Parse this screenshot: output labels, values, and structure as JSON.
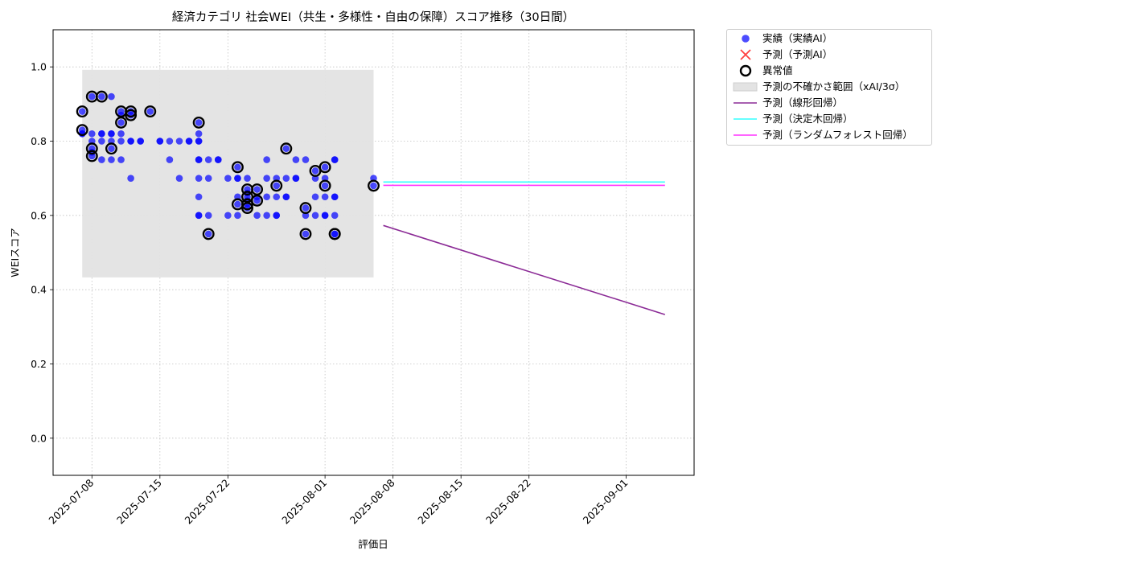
{
  "chart_data": {
    "type": "scatter",
    "title": "経済カテゴリ 社会WEI（共生・多様性・自由の保障）スコア推移（30日間）",
    "xlabel": "評価日",
    "ylabel": "WEIスコア",
    "x_type": "date",
    "xlim": [
      "2025-07-04",
      "2025-09-08"
    ],
    "ylim": [
      -0.1,
      1.1
    ],
    "grid": true,
    "x_ticks": [
      "2025-07-08",
      "2025-07-15",
      "2025-07-22",
      "2025-08-01",
      "2025-08-08",
      "2025-08-15",
      "2025-08-22",
      "2025-09-01"
    ],
    "y_ticks": [
      0.0,
      0.2,
      0.4,
      0.6,
      0.8,
      1.0
    ],
    "y_tick_labels": [
      "0.0",
      "0.2",
      "0.4",
      "0.6",
      "0.8",
      "1.0"
    ],
    "legend_position": "outside-right",
    "series": [
      {
        "name": "実績（実績AI）",
        "kind": "scatter",
        "color": "#0000ff",
        "points": [
          {
            "x": "2025-07-07",
            "y": 0.88
          },
          {
            "x": "2025-07-07",
            "y": 0.83
          },
          {
            "x": "2025-07-07",
            "y": 0.82
          },
          {
            "x": "2025-07-07",
            "y": 0.82
          },
          {
            "x": "2025-07-08",
            "y": 0.82
          },
          {
            "x": "2025-07-08",
            "y": 0.78
          },
          {
            "x": "2025-07-08",
            "y": 0.8
          },
          {
            "x": "2025-07-08",
            "y": 0.76
          },
          {
            "x": "2025-07-08",
            "y": 0.77
          },
          {
            "x": "2025-07-08",
            "y": 0.92
          },
          {
            "x": "2025-07-09",
            "y": 0.92
          },
          {
            "x": "2025-07-09",
            "y": 0.8
          },
          {
            "x": "2025-07-09",
            "y": 0.82
          },
          {
            "x": "2025-07-09",
            "y": 0.75
          },
          {
            "x": "2025-07-09",
            "y": 0.82
          },
          {
            "x": "2025-07-10",
            "y": 0.82
          },
          {
            "x": "2025-07-10",
            "y": 0.92
          },
          {
            "x": "2025-07-10",
            "y": 0.78
          },
          {
            "x": "2025-07-10",
            "y": 0.82
          },
          {
            "x": "2025-07-10",
            "y": 0.8
          },
          {
            "x": "2025-07-10",
            "y": 0.75
          },
          {
            "x": "2025-07-11",
            "y": 0.8
          },
          {
            "x": "2025-07-11",
            "y": 0.82
          },
          {
            "x": "2025-07-11",
            "y": 0.75
          },
          {
            "x": "2025-07-11",
            "y": 0.88
          },
          {
            "x": "2025-07-11",
            "y": 0.85
          },
          {
            "x": "2025-07-11",
            "y": 0.87
          },
          {
            "x": "2025-07-12",
            "y": 0.88
          },
          {
            "x": "2025-07-12",
            "y": 0.87
          },
          {
            "x": "2025-07-12",
            "y": 0.8
          },
          {
            "x": "2025-07-12",
            "y": 0.7
          },
          {
            "x": "2025-07-12",
            "y": 0.8
          },
          {
            "x": "2025-07-13",
            "y": 0.8
          },
          {
            "x": "2025-07-13",
            "y": 0.8
          },
          {
            "x": "2025-07-14",
            "y": 0.88
          },
          {
            "x": "2025-07-15",
            "y": 0.8
          },
          {
            "x": "2025-07-15",
            "y": 0.8
          },
          {
            "x": "2025-07-16",
            "y": 0.75
          },
          {
            "x": "2025-07-16",
            "y": 0.8
          },
          {
            "x": "2025-07-17",
            "y": 0.7
          },
          {
            "x": "2025-07-17",
            "y": 0.8
          },
          {
            "x": "2025-07-18",
            "y": 0.8
          },
          {
            "x": "2025-07-18",
            "y": 0.8
          },
          {
            "x": "2025-07-19",
            "y": 0.85
          },
          {
            "x": "2025-07-19",
            "y": 0.82
          },
          {
            "x": "2025-07-19",
            "y": 0.8
          },
          {
            "x": "2025-07-19",
            "y": 0.75
          },
          {
            "x": "2025-07-19",
            "y": 0.7
          },
          {
            "x": "2025-07-19",
            "y": 0.65
          },
          {
            "x": "2025-07-19",
            "y": 0.6
          },
          {
            "x": "2025-07-19",
            "y": 0.6
          },
          {
            "x": "2025-07-19",
            "y": 0.8
          },
          {
            "x": "2025-07-19",
            "y": 0.75
          },
          {
            "x": "2025-07-20",
            "y": 0.75
          },
          {
            "x": "2025-07-20",
            "y": 0.7
          },
          {
            "x": "2025-07-20",
            "y": 0.55
          },
          {
            "x": "2025-07-20",
            "y": 0.6
          },
          {
            "x": "2025-07-21",
            "y": 0.75
          },
          {
            "x": "2025-07-21",
            "y": 0.75
          },
          {
            "x": "2025-07-22",
            "y": 0.7
          },
          {
            "x": "2025-07-22",
            "y": 0.6
          },
          {
            "x": "2025-07-23",
            "y": 0.73
          },
          {
            "x": "2025-07-23",
            "y": 0.7
          },
          {
            "x": "2025-07-23",
            "y": 0.7
          },
          {
            "x": "2025-07-23",
            "y": 0.65
          },
          {
            "x": "2025-07-23",
            "y": 0.63
          },
          {
            "x": "2025-07-23",
            "y": 0.6
          },
          {
            "x": "2025-07-24",
            "y": 0.7
          },
          {
            "x": "2025-07-24",
            "y": 0.67
          },
          {
            "x": "2025-07-24",
            "y": 0.66
          },
          {
            "x": "2025-07-24",
            "y": 0.65
          },
          {
            "x": "2025-07-24",
            "y": 0.64
          },
          {
            "x": "2025-07-24",
            "y": 0.63
          },
          {
            "x": "2025-07-24",
            "y": 0.62
          },
          {
            "x": "2025-07-25",
            "y": 0.67
          },
          {
            "x": "2025-07-25",
            "y": 0.65
          },
          {
            "x": "2025-07-25",
            "y": 0.64
          },
          {
            "x": "2025-07-25",
            "y": 0.6
          },
          {
            "x": "2025-07-26",
            "y": 0.7
          },
          {
            "x": "2025-07-26",
            "y": 0.75
          },
          {
            "x": "2025-07-26",
            "y": 0.65
          },
          {
            "x": "2025-07-26",
            "y": 0.6
          },
          {
            "x": "2025-07-27",
            "y": 0.7
          },
          {
            "x": "2025-07-27",
            "y": 0.68
          },
          {
            "x": "2025-07-27",
            "y": 0.65
          },
          {
            "x": "2025-07-27",
            "y": 0.6
          },
          {
            "x": "2025-07-27",
            "y": 0.6
          },
          {
            "x": "2025-07-28",
            "y": 0.78
          },
          {
            "x": "2025-07-28",
            "y": 0.7
          },
          {
            "x": "2025-07-28",
            "y": 0.65
          },
          {
            "x": "2025-07-28",
            "y": 0.65
          },
          {
            "x": "2025-07-29",
            "y": 0.75
          },
          {
            "x": "2025-07-29",
            "y": 0.7
          },
          {
            "x": "2025-07-29",
            "y": 0.7
          },
          {
            "x": "2025-07-30",
            "y": 0.75
          },
          {
            "x": "2025-07-30",
            "y": 0.62
          },
          {
            "x": "2025-07-30",
            "y": 0.6
          },
          {
            "x": "2025-07-30",
            "y": 0.55
          },
          {
            "x": "2025-07-31",
            "y": 0.72
          },
          {
            "x": "2025-07-31",
            "y": 0.7
          },
          {
            "x": "2025-07-31",
            "y": 0.65
          },
          {
            "x": "2025-07-31",
            "y": 0.6
          },
          {
            "x": "2025-08-01",
            "y": 0.73
          },
          {
            "x": "2025-08-01",
            "y": 0.7
          },
          {
            "x": "2025-08-01",
            "y": 0.68
          },
          {
            "x": "2025-08-01",
            "y": 0.65
          },
          {
            "x": "2025-08-01",
            "y": 0.6
          },
          {
            "x": "2025-08-01",
            "y": 0.6
          },
          {
            "x": "2025-08-02",
            "y": 0.75
          },
          {
            "x": "2025-08-02",
            "y": 0.75
          },
          {
            "x": "2025-08-02",
            "y": 0.65
          },
          {
            "x": "2025-08-02",
            "y": 0.65
          },
          {
            "x": "2025-08-02",
            "y": 0.6
          },
          {
            "x": "2025-08-02",
            "y": 0.55
          },
          {
            "x": "2025-08-02",
            "y": 0.55
          },
          {
            "x": "2025-08-06",
            "y": 0.7
          },
          {
            "x": "2025-08-06",
            "y": 0.68
          }
        ]
      },
      {
        "name": "予測（予測AI）",
        "kind": "scatter",
        "marker": "x",
        "color": "#ff0000",
        "points": []
      },
      {
        "name": "異常値",
        "kind": "scatter",
        "marker": "ring",
        "color": "#000000",
        "points": [
          {
            "x": "2025-07-07",
            "y": 0.88
          },
          {
            "x": "2025-07-07",
            "y": 0.83
          },
          {
            "x": "2025-07-08",
            "y": 0.78
          },
          {
            "x": "2025-07-08",
            "y": 0.76
          },
          {
            "x": "2025-07-08",
            "y": 0.92
          },
          {
            "x": "2025-07-09",
            "y": 0.92
          },
          {
            "x": "2025-07-10",
            "y": 0.78
          },
          {
            "x": "2025-07-11",
            "y": 0.88
          },
          {
            "x": "2025-07-11",
            "y": 0.85
          },
          {
            "x": "2025-07-12",
            "y": 0.88
          },
          {
            "x": "2025-07-12",
            "y": 0.87
          },
          {
            "x": "2025-07-14",
            "y": 0.88
          },
          {
            "x": "2025-07-19",
            "y": 0.85
          },
          {
            "x": "2025-07-20",
            "y": 0.55
          },
          {
            "x": "2025-07-23",
            "y": 0.73
          },
          {
            "x": "2025-07-23",
            "y": 0.63
          },
          {
            "x": "2025-07-24",
            "y": 0.67
          },
          {
            "x": "2025-07-24",
            "y": 0.65
          },
          {
            "x": "2025-07-24",
            "y": 0.63
          },
          {
            "x": "2025-07-24",
            "y": 0.62
          },
          {
            "x": "2025-07-25",
            "y": 0.67
          },
          {
            "x": "2025-07-25",
            "y": 0.64
          },
          {
            "x": "2025-07-27",
            "y": 0.68
          },
          {
            "x": "2025-07-28",
            "y": 0.78
          },
          {
            "x": "2025-07-30",
            "y": 0.55
          },
          {
            "x": "2025-07-30",
            "y": 0.62
          },
          {
            "x": "2025-07-31",
            "y": 0.72
          },
          {
            "x": "2025-08-01",
            "y": 0.73
          },
          {
            "x": "2025-08-01",
            "y": 0.68
          },
          {
            "x": "2025-08-02",
            "y": 0.55
          },
          {
            "x": "2025-08-02",
            "y": 0.55
          },
          {
            "x": "2025-08-06",
            "y": 0.68
          }
        ]
      },
      {
        "name": "予測の不確かさ範囲（xAI/3σ）",
        "kind": "band",
        "color": "#e3e3e3",
        "x_range": [
          "2025-07-07",
          "2025-08-06"
        ],
        "y_range": [
          0.433,
          0.992
        ]
      },
      {
        "name": "予測（線形回帰）",
        "kind": "line",
        "color": "#8b2b96",
        "points": [
          {
            "x": "2025-08-07",
            "y": 0.573
          },
          {
            "x": "2025-09-05",
            "y": 0.333
          }
        ]
      },
      {
        "name": "予測（決定木回帰）",
        "kind": "line",
        "color": "#33ffff",
        "points": [
          {
            "x": "2025-08-07",
            "y": 0.69
          },
          {
            "x": "2025-09-05",
            "y": 0.69
          }
        ]
      },
      {
        "name": "予測（ランダムフォレスト回帰）",
        "kind": "line",
        "color": "#ff33ff",
        "points": [
          {
            "x": "2025-08-07",
            "y": 0.681
          },
          {
            "x": "2025-09-05",
            "y": 0.681
          }
        ]
      }
    ]
  }
}
